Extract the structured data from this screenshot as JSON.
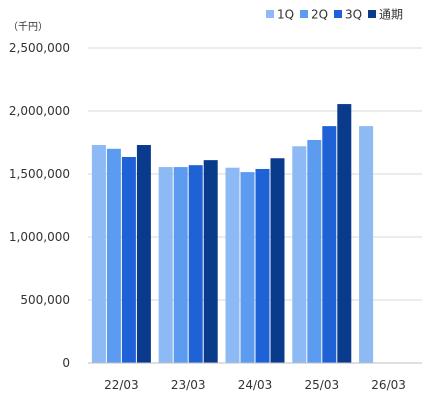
{
  "chart_data": {
    "type": "bar",
    "unit": "（千円）",
    "categories": [
      "22/03",
      "23/03",
      "24/03",
      "25/03",
      "26/03"
    ],
    "series": [
      {
        "name": "1Q",
        "color": "#8db9f5",
        "values": [
          1730000,
          1555000,
          1550000,
          1720000,
          1880000
        ]
      },
      {
        "name": "2Q",
        "color": "#5c9cf0",
        "values": [
          1700000,
          1555000,
          1515000,
          1770000,
          null
        ]
      },
      {
        "name": "3Q",
        "color": "#1f62d6",
        "values": [
          1635000,
          1570000,
          1540000,
          1880000,
          null
        ]
      },
      {
        "name": "通期",
        "color": "#0a3a8c",
        "values": [
          1730000,
          1610000,
          1625000,
          2055000,
          null
        ]
      }
    ],
    "yticks": [
      "0",
      "500,000",
      "1,000,000",
      "1,500,000",
      "2,000,000",
      "2,500,000"
    ],
    "ylim": [
      0,
      2500000
    ],
    "grid": true,
    "legend_position": "top-right"
  }
}
